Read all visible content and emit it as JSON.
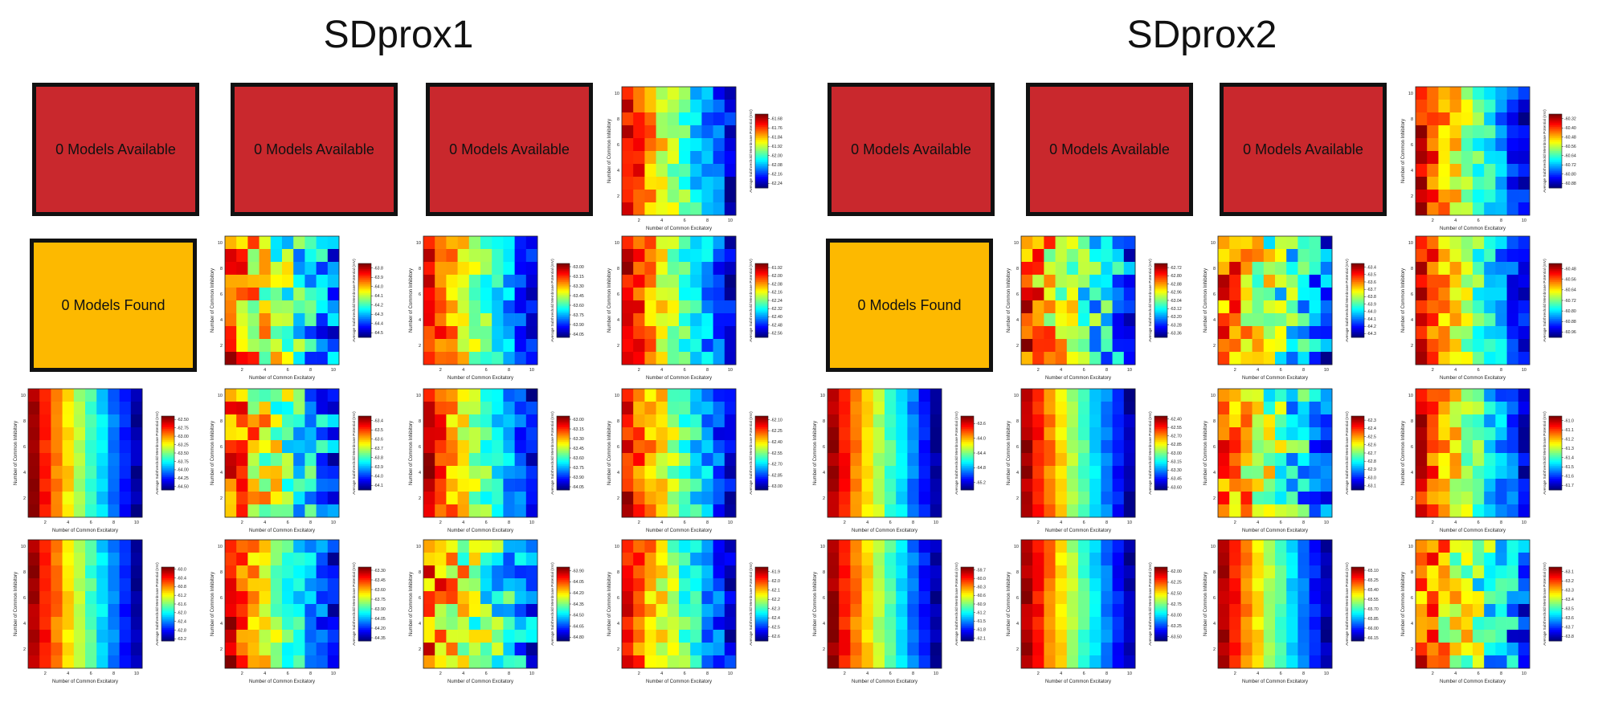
{
  "titles": {
    "left": "SDprox1",
    "right": "SDprox2"
  },
  "placeholders": {
    "available": "0 Models Available",
    "found": "0 Models Found",
    "red_color": "#c9282d",
    "yellow_color": "#fdb900"
  },
  "chart_data": [
    {
      "id": "p1-r1c4",
      "type": "heatmap",
      "xlabel": "Number of Common Excitatory",
      "ylabel": "Number of Common Inhibitory",
      "cbar_label": "Average Subthreshold Membrane Potential (mV)",
      "cbar_ticks": [
        "-61.68",
        "-61.76",
        "-61.84",
        "-61.92",
        "-62.00",
        "-62.08",
        "-62.16",
        "-62.24"
      ],
      "vmax": -61.64,
      "vmin": -62.28,
      "seed": 11,
      "pattern": "gradient"
    },
    {
      "id": "p1-r2c2",
      "type": "heatmap",
      "xlabel": "Number of Common Excitatory",
      "ylabel": "Number of Common Inhibitory",
      "cbar_label": "Average Subthreshold Membrane Potential (mV)",
      "cbar_ticks": [
        "-63.8",
        "-63.9",
        "-64.0",
        "-64.1",
        "-64.2",
        "-64.3",
        "-64.4",
        "-64.5"
      ],
      "vmax": -63.75,
      "vmin": -64.55,
      "seed": 22,
      "pattern": "noisy"
    },
    {
      "id": "p1-r2c3",
      "type": "heatmap",
      "xlabel": "Number of Common Excitatory",
      "ylabel": "Number of Common Inhibitory",
      "cbar_label": "Average Subthreshold Membrane Potential (mV)",
      "cbar_ticks": [
        "-63.00",
        "-63.15",
        "-63.30",
        "-63.45",
        "-63.60",
        "-63.75",
        "-63.90",
        "-64.05"
      ],
      "vmax": -62.95,
      "vmin": -64.1,
      "seed": 33,
      "pattern": "gradient"
    },
    {
      "id": "p1-r2c4",
      "type": "heatmap",
      "xlabel": "Number of Common Excitatory",
      "ylabel": "Number of Common Inhibitory",
      "cbar_label": "Average Subthreshold Membrane Potential (mV)",
      "cbar_ticks": [
        "-61.92",
        "-62.00",
        "-62.08",
        "-62.16",
        "-62.24",
        "-62.32",
        "-62.40",
        "-62.48",
        "-62.56"
      ],
      "vmax": -61.88,
      "vmin": -62.6,
      "seed": 44,
      "pattern": "gradient"
    },
    {
      "id": "p1-r3c1",
      "type": "heatmap",
      "xlabel": "Number of Common Excitatory",
      "ylabel": "Number of Common Inhibitory",
      "cbar_label": "Average Subthreshold Membrane Potential (mV)",
      "cbar_ticks": [
        "-62.50",
        "-62.75",
        "-63.00",
        "-63.25",
        "-63.50",
        "-63.75",
        "-64.00",
        "-64.25",
        "-64.50"
      ],
      "vmax": -62.4,
      "vmin": -64.6,
      "seed": 55,
      "pattern": "smooth"
    },
    {
      "id": "p1-r3c2",
      "type": "heatmap",
      "xlabel": "Number of Common Excitatory",
      "ylabel": "Number of Common Inhibitory",
      "cbar_label": "Average Subthreshold Membrane Potential (mV)",
      "cbar_ticks": [
        "-63.4",
        "-63.5",
        "-63.6",
        "-63.7",
        "-63.8",
        "-63.9",
        "-64.0",
        "-64.1"
      ],
      "vmax": -63.35,
      "vmin": -64.15,
      "seed": 66,
      "pattern": "noisy"
    },
    {
      "id": "p1-r3c3",
      "type": "heatmap",
      "xlabel": "Number of Common Excitatory",
      "ylabel": "Number of Common Inhibitory",
      "cbar_label": "Average Subthreshold Membrane Potential (mV)",
      "cbar_ticks": [
        "-63.00",
        "-63.15",
        "-63.30",
        "-63.45",
        "-63.60",
        "-63.75",
        "-63.90",
        "-64.05"
      ],
      "vmax": -62.95,
      "vmin": -64.1,
      "seed": 77,
      "pattern": "gradient"
    },
    {
      "id": "p1-r3c4",
      "type": "heatmap",
      "xlabel": "Number of Common Excitatory",
      "ylabel": "Number of Common Inhibitory",
      "cbar_label": "Average Subthreshold Membrane Potential (mV)",
      "cbar_ticks": [
        "-62.10",
        "-62.25",
        "-62.40",
        "-62.55",
        "-62.70",
        "-62.85",
        "-63.00"
      ],
      "vmax": -62.05,
      "vmin": -63.05,
      "seed": 88,
      "pattern": "gradient"
    },
    {
      "id": "p1-r4c1",
      "type": "heatmap",
      "xlabel": "Number of Common Excitatory",
      "ylabel": "Number of Common Inhibitory",
      "cbar_label": "Average Subthreshold Membrane Potential (mV)",
      "cbar_ticks": [
        "-60.0",
        "-60.4",
        "-60.8",
        "-61.2",
        "-61.6",
        "-62.0",
        "-62.4",
        "-62.8",
        "-63.2"
      ],
      "vmax": -59.9,
      "vmin": -63.3,
      "seed": 99,
      "pattern": "smooth"
    },
    {
      "id": "p1-r4c2",
      "type": "heatmap",
      "xlabel": "Number of Common Excitatory",
      "ylabel": "Number of Common Inhibitory",
      "cbar_label": "Average Subthreshold Membrane Potential (mV)",
      "cbar_ticks": [
        "-63.30",
        "-63.45",
        "-63.60",
        "-63.75",
        "-63.90",
        "-64.05",
        "-64.20",
        "-64.35"
      ],
      "vmax": -63.25,
      "vmin": -64.4,
      "seed": 111,
      "pattern": "gradient"
    },
    {
      "id": "p1-r4c3",
      "type": "heatmap",
      "xlabel": "Number of Common Excitatory",
      "ylabel": "Number of Common Inhibitory",
      "cbar_label": "Average Subthreshold Membrane Potential (mV)",
      "cbar_ticks": [
        "-63.90",
        "-64.05",
        "-64.20",
        "-64.35",
        "-64.50",
        "-64.65",
        "-64.80"
      ],
      "vmax": -63.85,
      "vmin": -64.85,
      "seed": 122,
      "pattern": "noisy"
    },
    {
      "id": "p1-r4c4",
      "type": "heatmap",
      "xlabel": "Number of Common Excitatory",
      "ylabel": "Number of Common Inhibitory",
      "cbar_label": "Average Subthreshold Membrane Potential (mV)",
      "cbar_ticks": [
        "-61.9",
        "-62.0",
        "-62.1",
        "-62.2",
        "-62.3",
        "-62.4",
        "-62.5",
        "-62.6"
      ],
      "vmax": -61.85,
      "vmin": -62.65,
      "seed": 133,
      "pattern": "gradient"
    },
    {
      "id": "p2-r1c4",
      "type": "heatmap",
      "xlabel": "Number of Common Excitatory",
      "ylabel": "Number of Common Inhibitory",
      "cbar_label": "Average Subthreshold Membrane Potential (mV)",
      "cbar_ticks": [
        "-60.32",
        "-60.40",
        "-60.48",
        "-60.56",
        "-60.64",
        "-60.72",
        "-60.80",
        "-60.88"
      ],
      "vmax": -60.28,
      "vmin": -60.92,
      "seed": 144,
      "pattern": "gradient"
    },
    {
      "id": "p2-r2c2",
      "type": "heatmap",
      "xlabel": "Number of Common Excitatory",
      "ylabel": "Number of Common Inhibitory",
      "cbar_label": "Average Subthreshold Membrane Potential (mV)",
      "cbar_ticks": [
        "-62.72",
        "-62.80",
        "-62.88",
        "-62.96",
        "-63.04",
        "-63.12",
        "-63.20",
        "-63.28",
        "-63.36"
      ],
      "vmax": -62.68,
      "vmin": -63.4,
      "seed": 155,
      "pattern": "noisy"
    },
    {
      "id": "p2-r2c3",
      "type": "heatmap",
      "xlabel": "Number of Common Excitatory",
      "ylabel": "Number of Common Inhibitory",
      "cbar_label": "Average Subthreshold Membrane Potential (mV)",
      "cbar_ticks": [
        "-63.4",
        "-63.5",
        "-63.6",
        "-63.7",
        "-63.8",
        "-63.9",
        "-64.0",
        "-64.1",
        "-64.2",
        "-64.3"
      ],
      "vmax": -63.35,
      "vmin": -64.35,
      "seed": 166,
      "pattern": "noisy"
    },
    {
      "id": "p2-r2c4",
      "type": "heatmap",
      "xlabel": "Number of Common Excitatory",
      "ylabel": "Number of Common Inhibitory",
      "cbar_label": "Average Subthreshold Membrane Potential (mV)",
      "cbar_ticks": [
        "-60.48",
        "-60.56",
        "-60.64",
        "-60.72",
        "-60.80",
        "-60.88",
        "-60.96"
      ],
      "vmax": -60.44,
      "vmin": -61.0,
      "seed": 177,
      "pattern": "gradient"
    },
    {
      "id": "p2-r3c1",
      "type": "heatmap",
      "xlabel": "Number of Common Excitatory",
      "ylabel": "Number of Common Inhibitory",
      "cbar_label": "Average Subthreshold Membrane Potential (mV)",
      "cbar_ticks": [
        "-63.6",
        "-64.0",
        "-64.4",
        "-64.8",
        "-65.2"
      ],
      "vmax": -63.4,
      "vmin": -65.4,
      "seed": 188,
      "pattern": "smooth"
    },
    {
      "id": "p2-r3c2",
      "type": "heatmap",
      "xlabel": "Number of Common Excitatory",
      "ylabel": "Number of Common Inhibitory",
      "cbar_label": "Average Subthreshold Membrane Potential (mV)",
      "cbar_ticks": [
        "-62.40",
        "-62.55",
        "-62.70",
        "-62.85",
        "-63.00",
        "-63.15",
        "-63.30",
        "-63.45",
        "-63.60"
      ],
      "vmax": -62.35,
      "vmin": -63.65,
      "seed": 199,
      "pattern": "smooth"
    },
    {
      "id": "p2-r3c3",
      "type": "heatmap",
      "xlabel": "Number of Common Excitatory",
      "ylabel": "Number of Common Inhibitory",
      "cbar_label": "Average Subthreshold Membrane Potential (mV)",
      "cbar_ticks": [
        "-62.3",
        "-62.4",
        "-62.5",
        "-62.6",
        "-62.7",
        "-62.8",
        "-62.9",
        "-63.0",
        "-63.1"
      ],
      "vmax": -62.25,
      "vmin": -63.15,
      "seed": 211,
      "pattern": "noisy"
    },
    {
      "id": "p2-r3c4",
      "type": "heatmap",
      "xlabel": "Number of Common Excitatory",
      "ylabel": "Number of Common Inhibitory",
      "cbar_label": "Average Subthreshold Membrane Potential (mV)",
      "cbar_ticks": [
        "-61.0",
        "-61.1",
        "-61.2",
        "-61.3",
        "-61.4",
        "-61.5",
        "-61.6",
        "-61.7"
      ],
      "vmax": -60.95,
      "vmin": -61.75,
      "seed": 222,
      "pattern": "gradient"
    },
    {
      "id": "p2-r4c1",
      "type": "heatmap",
      "xlabel": "Number of Common Excitatory",
      "ylabel": "Number of Common Inhibitory",
      "cbar_label": "Average Subthreshold Membrane Potential (mV)",
      "cbar_ticks": [
        "-59.7",
        "-60.0",
        "-60.3",
        "-60.6",
        "-60.9",
        "-61.2",
        "-61.5",
        "-61.8",
        "-62.1"
      ],
      "vmax": -59.6,
      "vmin": -62.2,
      "seed": 233,
      "pattern": "smooth"
    },
    {
      "id": "p2-r4c2",
      "type": "heatmap",
      "xlabel": "Number of Common Excitatory",
      "ylabel": "Number of Common Inhibitory",
      "cbar_label": "Average Subthreshold Membrane Potential (mV)",
      "cbar_ticks": [
        "-62.00",
        "-62.25",
        "-62.50",
        "-62.75",
        "-63.00",
        "-63.25",
        "-63.50"
      ],
      "vmax": -61.9,
      "vmin": -63.6,
      "seed": 244,
      "pattern": "smooth"
    },
    {
      "id": "p2-r4c3",
      "type": "heatmap",
      "xlabel": "Number of Common Excitatory",
      "ylabel": "Number of Common Inhibitory",
      "cbar_label": "Average Subthreshold Membrane Potential (mV)",
      "cbar_ticks": [
        "-65.10",
        "-65.25",
        "-65.40",
        "-65.55",
        "-65.70",
        "-65.85",
        "-66.00",
        "-66.15"
      ],
      "vmax": -65.05,
      "vmin": -66.2,
      "seed": 255,
      "pattern": "smooth"
    },
    {
      "id": "p2-r4c4",
      "type": "heatmap",
      "xlabel": "Number of Common Excitatory",
      "ylabel": "Number of Common Inhibitory",
      "cbar_label": "Average Subthreshold Membrane Potential (mV)",
      "cbar_ticks": [
        "-63.1",
        "-63.2",
        "-63.3",
        "-63.4",
        "-63.5",
        "-63.6",
        "-63.7",
        "-63.8"
      ],
      "vmax": -63.05,
      "vmin": -63.85,
      "seed": 266,
      "pattern": "noisy"
    }
  ]
}
